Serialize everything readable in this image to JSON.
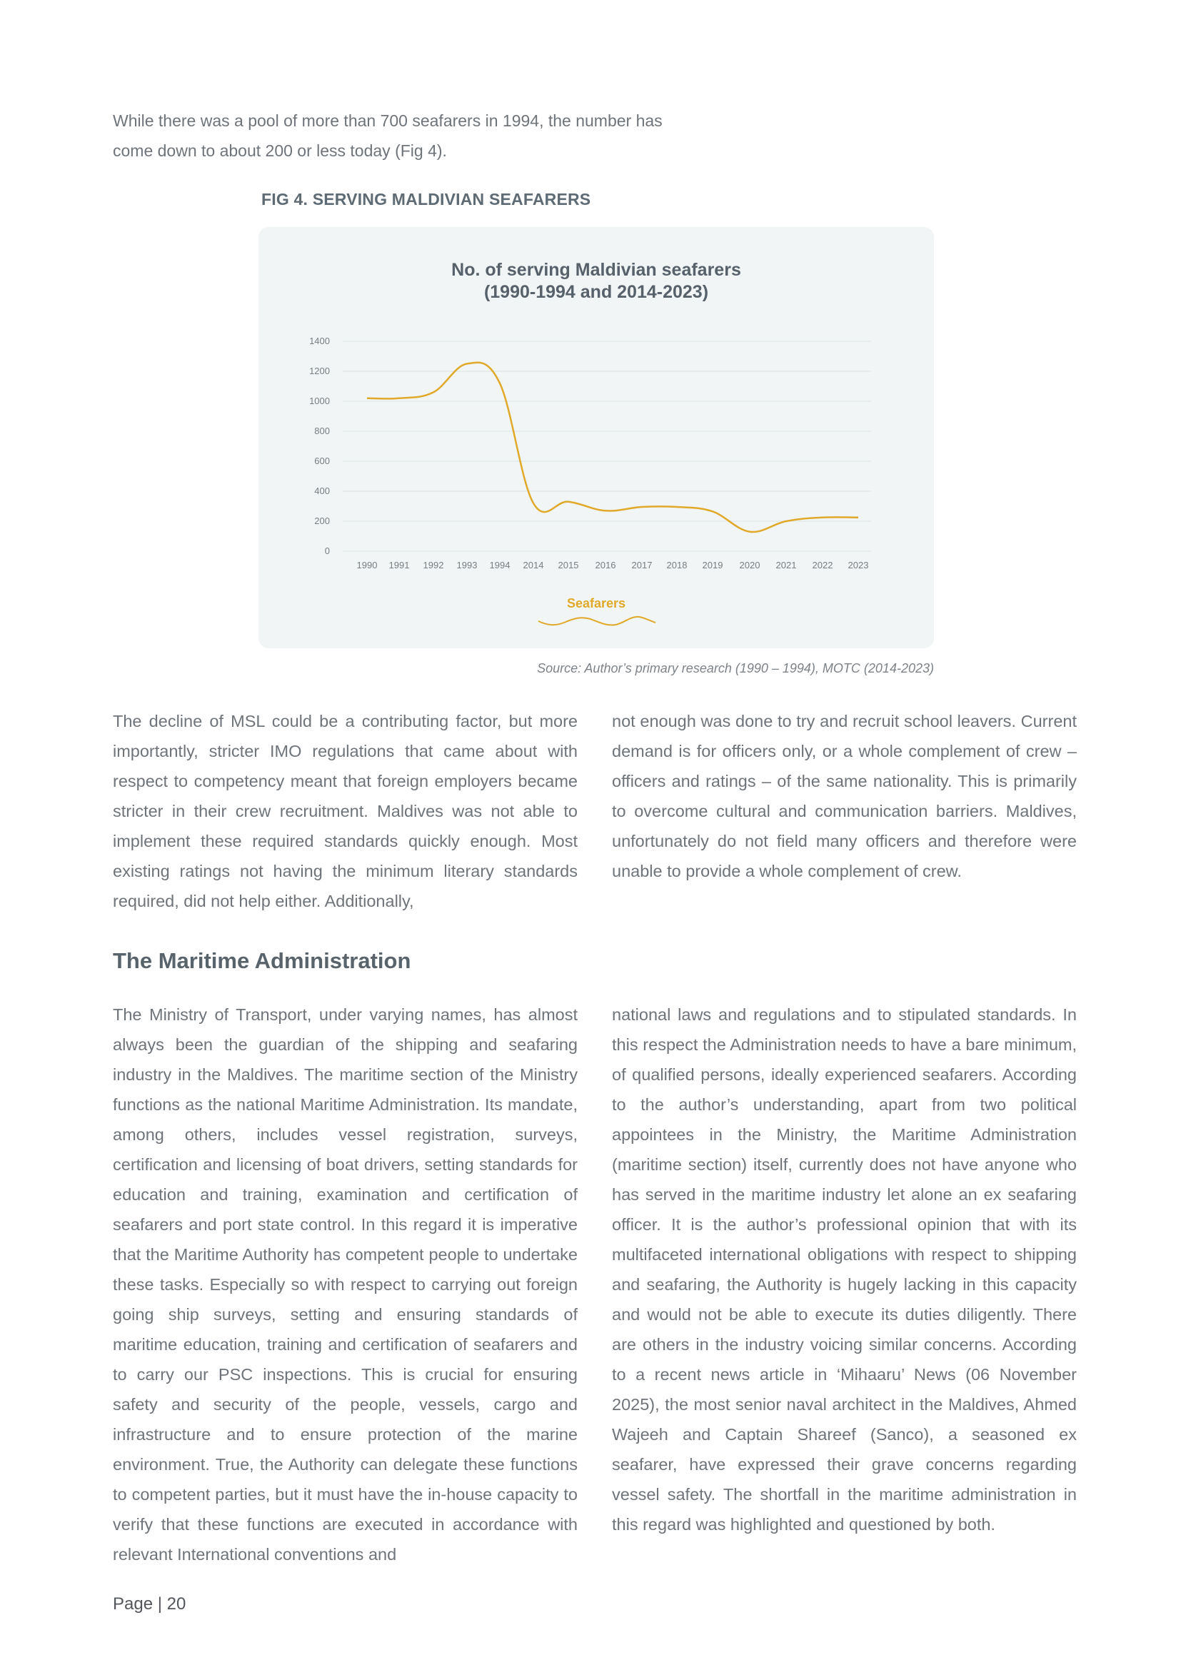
{
  "intro": {
    "text": "While there was a pool of more than 700 seafarers in 1994, the number has come down to about 200 or less today (Fig 4)."
  },
  "figure": {
    "caption": "FIG 4. SERVING MALDIVIAN SEAFARERS",
    "source": "Source: Author’s primary research (1990 – 1994), MOTC (2014-2023)"
  },
  "chart_data": {
    "type": "line",
    "title_line1": "No. of serving Maldivian seafarers",
    "title_line2": "(1990-1994 and 2014-2023)",
    "xlabel": "",
    "ylabel": "",
    "categories": [
      "1990",
      "1991",
      "1992",
      "1993",
      "1994",
      "2014",
      "2015",
      "2016",
      "2017",
      "2018",
      "2019",
      "2020",
      "2021",
      "2022",
      "2023"
    ],
    "y_ticks": [
      "0",
      "200",
      "400",
      "600",
      "800",
      "1000",
      "1200",
      "1400"
    ],
    "ylim": [
      0,
      1400
    ],
    "grid": true,
    "legend_position": "bottom-center",
    "series": [
      {
        "name": "Seafarers",
        "color": "#e0a92a",
        "values": [
          1020,
          1020,
          1060,
          1250,
          1120,
          320,
          330,
          270,
          295,
          295,
          265,
          130,
          200,
          225,
          225
        ]
      }
    ]
  },
  "left_paragraph_1": "The decline of MSL could be a contributing factor, but more importantly, stricter IMO regulations that came about with respect to competency meant that foreign employers became stricter in their crew recruitment. Maldives was not able to implement these required standards quickly enough. Most existing ratings not having the minimum literary standards required, did not help either. Additionally,",
  "right_paragraph_1": "not enough was done to try and recruit school leavers. Current demand is for officers only, or a whole complement of crew – officers and ratings – of the same nationality. This is primarily to overcome cultural and communication barriers. Maldives, unfortunately do not field many officers and therefore were unable to provide a whole complement of crew.",
  "section": {
    "title": "The Maritime Administration"
  },
  "left_paragraph_2": "The Ministry of Transport, under varying names, has almost always been the guardian of the shipping and seafaring industry in the Maldives. The maritime section of the Ministry functions as the national Maritime Administration. Its mandate, among others, includes vessel registration, surveys, certification and licensing of boat drivers, setting standards for education and training, examination and certification of seafarers and port state control. In this regard it is imperative that the Maritime Authority has competent people to undertake these tasks. Especially so with respect to carrying out foreign going ship surveys, setting and ensuring standards of maritime education, training and certification of seafarers and to carry our PSC inspections. This is crucial for ensuring safety and security of the people, vessels, cargo and infrastructure and to ensure protection of the marine environment. True, the Authority can delegate these functions to competent parties, but it must have the in-house capacity to verify that these functions are executed in accordance with relevant International conventions and",
  "right_paragraph_2": "national laws and regulations and to stipulated standards. In this respect the Administration needs to have a bare minimum, of qualified persons, ideally experienced seafarers. According to the author’s understanding, apart from two political appointees in the Ministry, the Maritime Administration (maritime section) itself, currently does not have anyone who has served in the maritime industry let alone an ex seafaring officer. It is the author’s professional opinion that with its multifaceted international obligations with respect to shipping and seafaring, the Authority is hugely lacking in this capacity and would not be able to execute its duties diligently. There are others in the industry voicing similar concerns. According to a recent news article in ‘Mihaaru’ News (06 November 2025), the most senior naval architect in the Maldives, Ahmed Wajeeh and Captain Shareef (Sanco), a seasoned ex seafarer, have expressed their grave concerns regarding vessel safety. The shortfall in the maritime administration in this regard was highlighted and questioned by both.",
  "footer": {
    "page_label": "Page | 20"
  }
}
